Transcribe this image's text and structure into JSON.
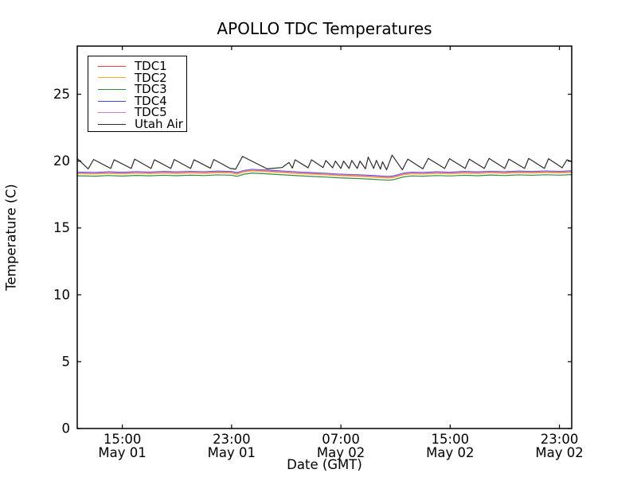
{
  "chart_data": {
    "type": "line",
    "title": "APOLLO TDC Temperatures",
    "xlabel": "Date (GMT)",
    "ylabel": "Temperature (C)",
    "x_encoding": "hours since May 01 00:00 GMT",
    "xlim": [
      11.7,
      47.9
    ],
    "ylim": [
      0,
      28.6
    ],
    "yticks": [
      0,
      5,
      10,
      15,
      20,
      25
    ],
    "xticks": [
      {
        "value": 15,
        "time": "15:00",
        "date": "May 01"
      },
      {
        "value": 23,
        "time": "23:00",
        "date": "May 01"
      },
      {
        "value": 31,
        "time": "07:00",
        "date": "May 02"
      },
      {
        "value": 39,
        "time": "15:00",
        "date": "May 02"
      },
      {
        "value": 47,
        "time": "23:00",
        "date": "May 02"
      }
    ],
    "grid": false,
    "legend_position": "upper-left",
    "axis_color": "#000000",
    "series": [
      {
        "name": "TDC1",
        "color": "#ee3b3b",
        "x": [
          11.7,
          13,
          14,
          15,
          16,
          17,
          18,
          19,
          20,
          21,
          22,
          23,
          23.4,
          23.9,
          24.5,
          25.2,
          26,
          27,
          28,
          29,
          30,
          30.8,
          31.6,
          32.4,
          33.2,
          34,
          34.5,
          34.9,
          35.6,
          36.2,
          37,
          38,
          39,
          40,
          41,
          42,
          43,
          44,
          45,
          46,
          47,
          47.9
        ],
        "values": [
          19.1,
          19.07,
          19.12,
          19.08,
          19.13,
          19.1,
          19.14,
          19.11,
          19.15,
          19.12,
          19.17,
          19.14,
          19.06,
          19.22,
          19.3,
          19.27,
          19.22,
          19.16,
          19.1,
          19.05,
          19.0,
          18.95,
          18.92,
          18.89,
          18.85,
          18.8,
          18.77,
          18.82,
          19.02,
          19.09,
          19.07,
          19.12,
          19.09,
          19.14,
          19.11,
          19.16,
          19.12,
          19.17,
          19.14,
          19.18,
          19.15,
          19.19
        ]
      },
      {
        "name": "TDC2",
        "color": "#ffa931",
        "x": [
          11.7,
          13,
          14,
          15,
          16,
          17,
          18,
          19,
          20,
          21,
          22,
          23,
          23.4,
          23.9,
          24.5,
          25.2,
          26,
          27,
          28,
          29,
          30,
          30.8,
          31.6,
          32.4,
          33.2,
          34,
          34.5,
          34.9,
          35.6,
          36.2,
          37,
          38,
          39,
          40,
          41,
          42,
          43,
          44,
          45,
          46,
          47,
          47.9
        ],
        "values": [
          19.06,
          19.03,
          19.08,
          19.04,
          19.09,
          19.06,
          19.1,
          19.07,
          19.11,
          19.08,
          19.13,
          19.1,
          19.02,
          19.18,
          19.26,
          19.23,
          19.18,
          19.12,
          19.06,
          19.01,
          18.96,
          18.91,
          18.88,
          18.85,
          18.81,
          18.76,
          18.73,
          18.78,
          18.98,
          19.05,
          19.03,
          19.08,
          19.05,
          19.1,
          19.07,
          19.12,
          19.08,
          19.13,
          19.1,
          19.14,
          19.11,
          19.15
        ]
      },
      {
        "name": "TDC3",
        "color": "#2e8b3d",
        "x": [
          11.7,
          13,
          14,
          15,
          16,
          17,
          18,
          19,
          20,
          21,
          22,
          23,
          23.4,
          23.9,
          24.5,
          25.2,
          26,
          27,
          28,
          29,
          30,
          30.8,
          31.6,
          32.4,
          33.2,
          34,
          34.5,
          34.9,
          35.6,
          36.2,
          37,
          38,
          39,
          40,
          41,
          42,
          43,
          44,
          45,
          46,
          47,
          47.9
        ],
        "values": [
          18.9,
          18.87,
          18.92,
          18.88,
          18.93,
          18.9,
          18.94,
          18.91,
          18.95,
          18.92,
          18.97,
          18.94,
          18.86,
          19.02,
          19.1,
          19.07,
          19.02,
          18.96,
          18.9,
          18.85,
          18.8,
          18.75,
          18.72,
          18.69,
          18.65,
          18.6,
          18.57,
          18.62,
          18.82,
          18.89,
          18.87,
          18.92,
          18.89,
          18.94,
          18.91,
          18.96,
          18.92,
          18.97,
          18.94,
          18.98,
          18.95,
          18.99
        ]
      },
      {
        "name": "TDC4",
        "color": "#4444ee",
        "x": [
          11.7,
          13,
          14,
          15,
          16,
          17,
          18,
          19,
          20,
          21,
          22,
          23,
          23.4,
          23.9,
          24.5,
          25.2,
          26,
          27,
          28,
          29,
          30,
          30.8,
          31.6,
          32.4,
          33.2,
          34,
          34.5,
          34.9,
          35.6,
          36.2,
          37,
          38,
          39,
          40,
          41,
          42,
          43,
          44,
          45,
          46,
          47,
          47.9
        ],
        "values": [
          19.18,
          19.15,
          19.2,
          19.16,
          19.21,
          19.18,
          19.22,
          19.19,
          19.23,
          19.2,
          19.25,
          19.22,
          19.14,
          19.3,
          19.38,
          19.35,
          19.3,
          19.24,
          19.18,
          19.13,
          19.08,
          19.03,
          19.0,
          18.97,
          18.93,
          18.88,
          18.85,
          18.9,
          19.1,
          19.17,
          19.15,
          19.2,
          19.17,
          19.22,
          19.19,
          19.24,
          19.2,
          19.25,
          19.22,
          19.26,
          19.23,
          19.27
        ]
      },
      {
        "name": "TDC5",
        "color": "#c87fd0",
        "x": [
          11.7,
          13,
          14,
          15,
          16,
          17,
          18,
          19,
          20,
          21,
          22,
          23,
          23.4,
          23.9,
          24.5,
          25.2,
          26,
          27,
          28,
          29,
          30,
          30.8,
          31.6,
          32.4,
          33.2,
          34,
          34.5,
          34.9,
          35.6,
          36.2,
          37,
          38,
          39,
          40,
          41,
          42,
          43,
          44,
          45,
          46,
          47,
          47.9
        ],
        "values": [
          19.14,
          19.11,
          19.16,
          19.12,
          19.17,
          19.14,
          19.18,
          19.15,
          19.19,
          19.16,
          19.21,
          19.18,
          19.1,
          19.26,
          19.34,
          19.31,
          19.26,
          19.2,
          19.14,
          19.09,
          19.04,
          18.99,
          18.96,
          18.93,
          18.89,
          18.84,
          18.81,
          18.86,
          19.06,
          19.13,
          19.11,
          19.16,
          19.13,
          19.18,
          19.15,
          19.2,
          19.16,
          19.21,
          19.18,
          19.22,
          19.19,
          19.23
        ]
      },
      {
        "name": "Utah Air",
        "color": "#2b2b2b",
        "x": [
          11.7,
          12.5,
          12.9,
          14.15,
          14.4,
          15.65,
          15.9,
          17.1,
          17.35,
          18.55,
          18.8,
          20.0,
          20.25,
          21.45,
          21.7,
          22.9,
          23.3,
          23.8,
          25.6,
          26.7,
          27.2,
          27.45,
          27.65,
          28.6,
          28.85,
          29.7,
          29.9,
          30.4,
          30.6,
          31.0,
          31.2,
          31.6,
          31.8,
          32.2,
          32.4,
          32.8,
          33.0,
          33.4,
          33.6,
          33.9,
          34.05,
          34.35,
          34.75,
          35.5,
          35.9,
          37.0,
          37.4,
          38.6,
          38.95,
          40.1,
          40.4,
          41.5,
          41.85,
          43.0,
          43.3,
          44.45,
          44.75,
          45.9,
          46.2,
          47.2,
          47.55,
          47.9
        ],
        "values": [
          20.2,
          19.42,
          20.12,
          19.45,
          20.1,
          19.45,
          20.15,
          19.45,
          20.1,
          19.45,
          20.12,
          19.45,
          20.1,
          19.47,
          20.12,
          19.45,
          19.4,
          20.35,
          19.42,
          19.52,
          19.9,
          19.48,
          20.1,
          19.5,
          20.1,
          19.52,
          20.05,
          19.5,
          20.0,
          19.45,
          20.0,
          19.45,
          20.05,
          19.45,
          20.0,
          19.42,
          20.3,
          19.45,
          20.05,
          19.4,
          19.95,
          19.35,
          20.45,
          19.35,
          20.15,
          19.42,
          20.2,
          19.45,
          20.18,
          19.45,
          20.15,
          19.45,
          20.2,
          19.45,
          20.15,
          19.45,
          20.2,
          19.45,
          20.18,
          19.5,
          20.1,
          19.95
        ]
      }
    ]
  }
}
